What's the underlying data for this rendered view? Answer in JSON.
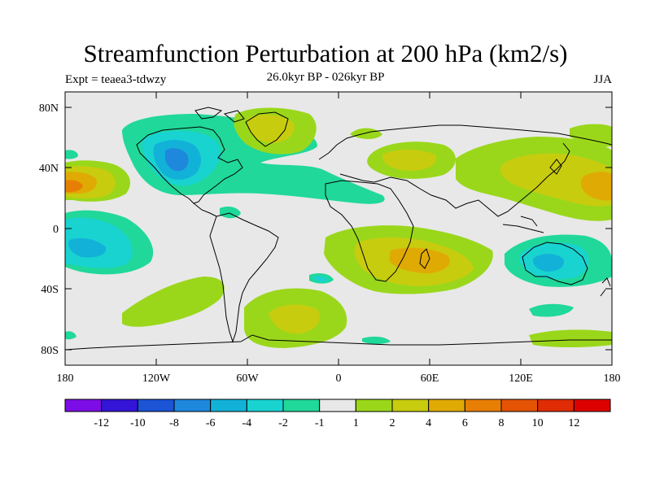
{
  "title": "Streamfunction Perturbation at 200 hPa (km2/s)",
  "left_label": "Expt = teaea3-tdwzy",
  "center_label": "26.0kyr BP - 026kyr BP",
  "right_label": "JJA",
  "axes": {
    "lat_ticks": [
      "80N",
      "40N",
      "0",
      "40S",
      "80S"
    ],
    "lon_ticks": [
      "180",
      "120W",
      "60W",
      "0",
      "60E",
      "120E",
      "180"
    ]
  },
  "colorbar": {
    "colors": [
      "#7d0de6",
      "#3414d6",
      "#1c54d6",
      "#1e88dd",
      "#12b2d8",
      "#19d3d0",
      "#20d89a",
      "#e8e8e8",
      "#9ad71b",
      "#c8cc0e",
      "#e0aa05",
      "#e87f05",
      "#e45404",
      "#df2c05",
      "#dd0000"
    ],
    "labels": [
      "-12",
      "-10",
      "-8",
      "-6",
      "-4",
      "-2",
      "-1",
      "1",
      "2",
      "4",
      "6",
      "8",
      "10",
      "12"
    ]
  },
  "colors": {
    "background": "#e8e8e8",
    "light_green": "#9ad71b",
    "yellow_green": "#c8cc0e",
    "orange": "#e0aa05",
    "dark_orange": "#e87f05",
    "green_teal": "#20d89a",
    "teal": "#19d3d0",
    "cyan": "#12b2d8",
    "blue": "#1e88dd"
  }
}
